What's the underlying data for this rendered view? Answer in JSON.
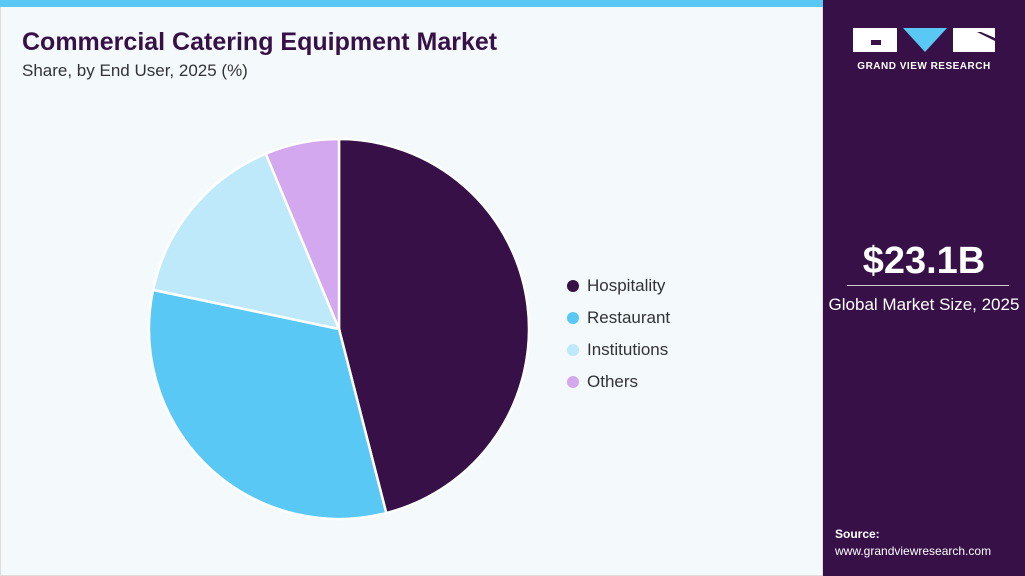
{
  "header": {
    "title": "Commercial Catering Equipment Market",
    "subtitle": "Share, by End User, 2025 (%)"
  },
  "chart_data": {
    "type": "pie",
    "title": "Commercial Catering Equipment Market",
    "subtitle": "Share, by End User, 2025 (%)",
    "categories": [
      "Hospitality",
      "Restaurant",
      "Institutions",
      "Others"
    ],
    "values": [
      46.0,
      32.3,
      15.4,
      6.3
    ],
    "colors": [
      "#371047",
      "#5ac8f5",
      "#bde9fa",
      "#d3a8ee"
    ],
    "start_angle": "12 o'clock",
    "direction": "clockwise",
    "legend": "right"
  },
  "sidebar": {
    "logo_text": "GRAND VIEW RESEARCH",
    "market_size": "$23.1B",
    "market_label": "Global Market Size, 2025",
    "source_label": "Source:",
    "source_url": "www.grandviewresearch.com",
    "accent": "#5ac8f5"
  }
}
